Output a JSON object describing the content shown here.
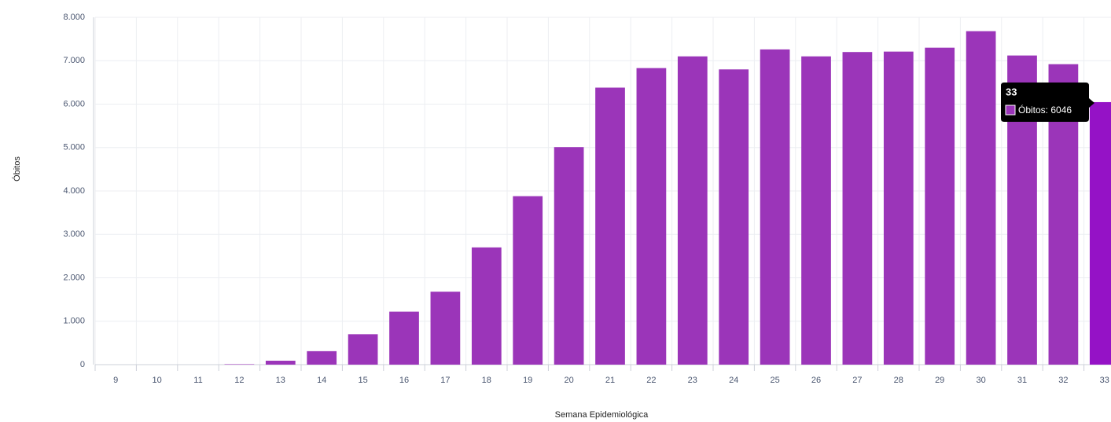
{
  "chart_data": {
    "type": "bar",
    "x_label": "Semana Epidemiológica",
    "y_label": "Óbitos",
    "categories": [
      "9",
      "10",
      "11",
      "12",
      "13",
      "14",
      "15",
      "16",
      "17",
      "18",
      "19",
      "20",
      "21",
      "22",
      "23",
      "24",
      "25",
      "26",
      "27",
      "28",
      "29",
      "30",
      "31",
      "32",
      "33"
    ],
    "series": [
      {
        "name": "Óbitos",
        "color": "#9b35b9",
        "values": [
          0,
          0,
          0,
          10,
          90,
          310,
          700,
          1220,
          1680,
          2700,
          3880,
          5010,
          6380,
          6830,
          7100,
          6800,
          7260,
          7100,
          7200,
          7210,
          7300,
          7680,
          7120,
          6920,
          6046
        ]
      }
    ],
    "highlight_color": "#9512c6",
    "ylim": [
      0,
      8000
    ],
    "yticks": [
      0,
      {
        "value": 1000,
        "label": "1.000"
      },
      {
        "value": 2000,
        "label": "2.000"
      },
      {
        "value": 3000,
        "label": "3.000"
      },
      {
        "value": 4000,
        "label": "4.000"
      },
      {
        "value": 5000,
        "label": "5.000"
      },
      {
        "value": 6000,
        "label": "6.000"
      },
      {
        "value": 7000,
        "label": "7.000"
      },
      {
        "value": 8000,
        "label": "8.000"
      }
    ],
    "grid": true,
    "tooltip": {
      "category": "33",
      "label": "Óbitos: 6046"
    }
  }
}
